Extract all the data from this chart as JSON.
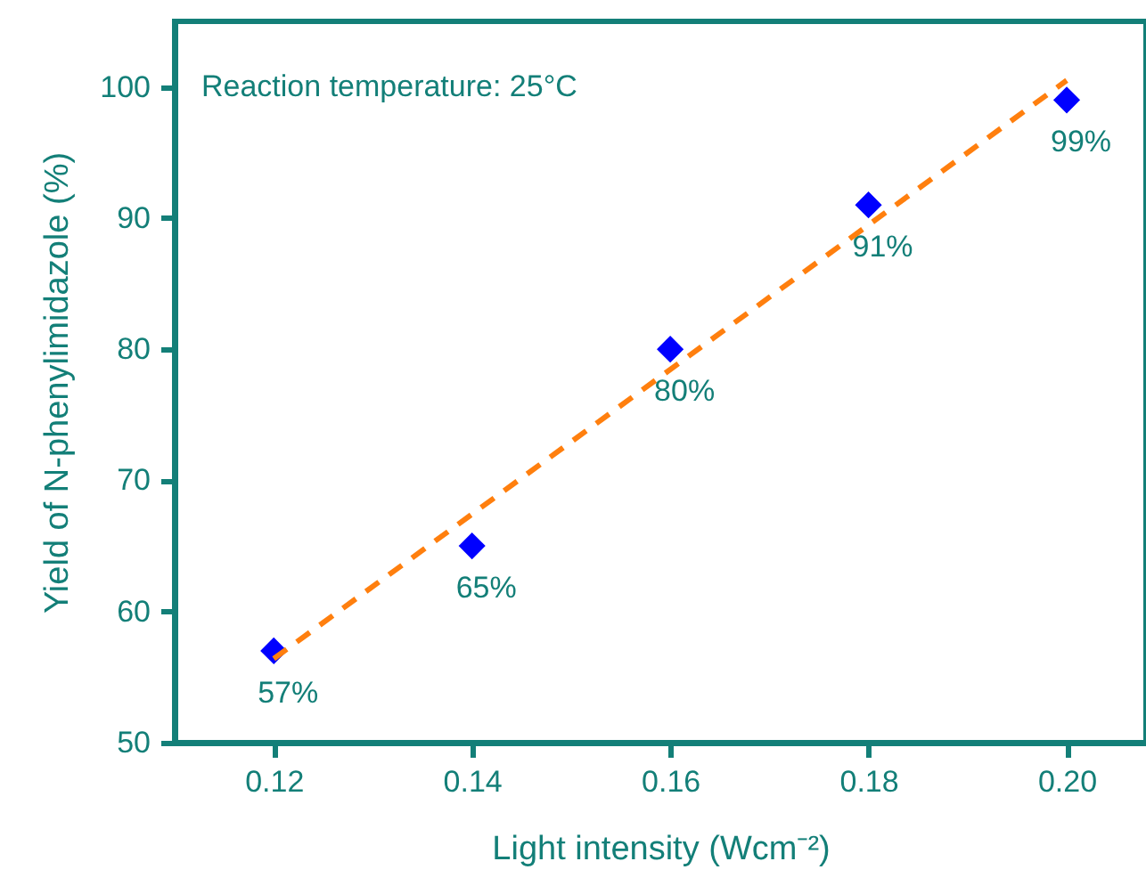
{
  "chart_data": {
    "type": "scatter",
    "xlabel": "Light intensity (Wcm⁻²)",
    "ylabel": "Yield of N-phenylimidazole (%)",
    "annotations": [
      "Reaction temperature: 25°C"
    ],
    "x": [
      0.12,
      0.14,
      0.16,
      0.18,
      0.2
    ],
    "series": [
      {
        "color": "#0000ff",
        "values": [
          57,
          65,
          80,
          91,
          99
        ],
        "value_labels": [
          "57%",
          "65%",
          "80%",
          "91%",
          "99%"
        ],
        "marker": "diamond"
      },
      {
        "type": "line",
        "color": "#ff7f0e",
        "x": [
          0.12,
          0.2
        ],
        "values": [
          56.4,
          100.5
        ],
        "line_style": "dashed",
        "marker": "none"
      }
    ],
    "xlim": [
      0.11,
      0.208
    ],
    "ylim": [
      50,
      105
    ],
    "xticks": [
      0.12,
      0.14,
      0.16,
      0.18,
      {
        "value": 0.2,
        "label": "0.20"
      }
    ],
    "yticks": [
      50,
      60,
      70,
      80,
      90,
      100
    ],
    "grid": false
  }
}
